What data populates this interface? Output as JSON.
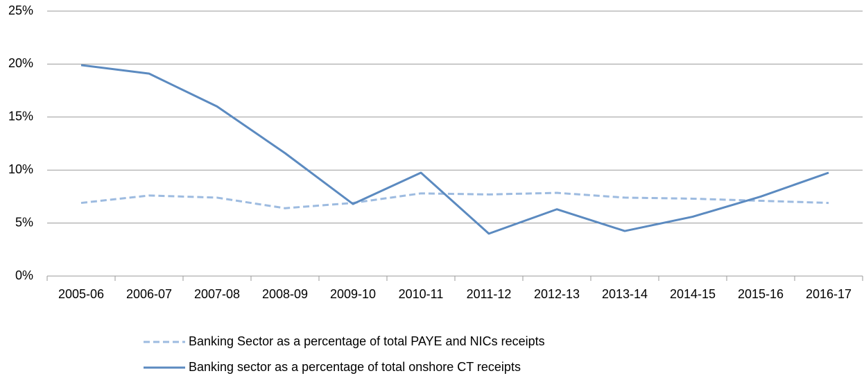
{
  "chart_data": {
    "type": "line",
    "categories": [
      "2005-06",
      "2006-07",
      "2007-08",
      "2008-09",
      "2009-10",
      "2010-11",
      "2011-12",
      "2012-13",
      "2013-14",
      "2014-15",
      "2015-16",
      "2016-17"
    ],
    "series": [
      {
        "name": "Banking Sector as a percentage of total PAYE and NICs receipts",
        "color": "#9dbbe0",
        "dashed": true,
        "values": [
          6.9,
          7.6,
          7.4,
          6.4,
          6.9,
          7.8,
          7.7,
          7.85,
          7.4,
          7.3,
          7.1,
          6.9
        ]
      },
      {
        "name": "Banking sector as a percentage of total onshore CT receipts",
        "color": "#5b8ac0",
        "dashed": false,
        "values": [
          19.9,
          19.1,
          16.0,
          11.6,
          6.8,
          9.75,
          4.0,
          6.3,
          4.25,
          5.6,
          7.5,
          9.75
        ]
      }
    ],
    "ylim": [
      0,
      25
    ],
    "yticks": [
      {
        "value": 0,
        "label": "0%"
      },
      {
        "value": 5,
        "label": "5%"
      },
      {
        "value": 10,
        "label": "10%"
      },
      {
        "value": 15,
        "label": "15%"
      },
      {
        "value": 20,
        "label": "20%"
      },
      {
        "value": 25,
        "label": "25%"
      }
    ],
    "grid": true,
    "legend": "bottom"
  }
}
